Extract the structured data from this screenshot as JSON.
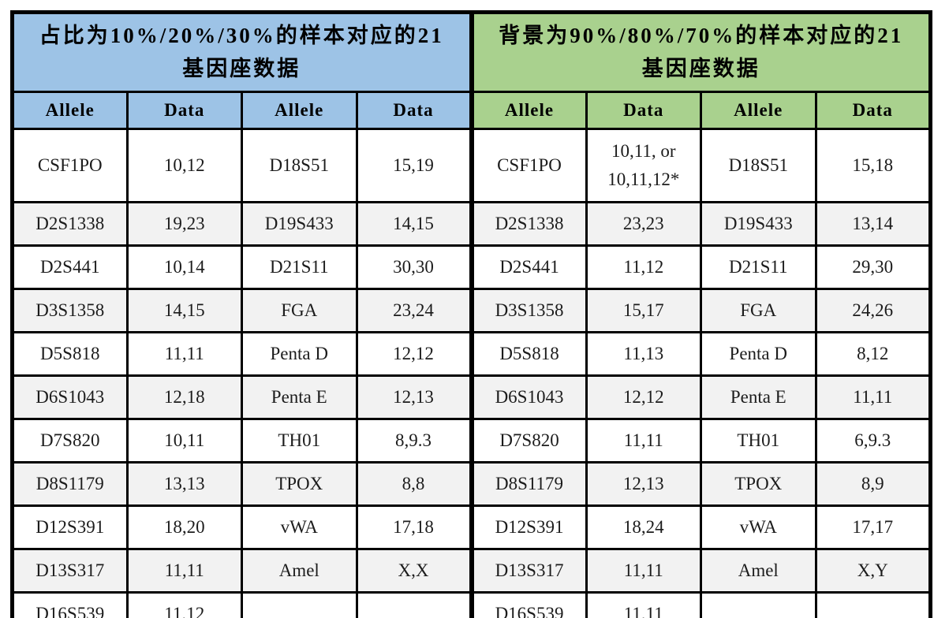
{
  "colors": {
    "blue": "#9DC3E6",
    "green": "#A9D18E",
    "rowalt": "#F2F2F2",
    "border": "#000000"
  },
  "left": {
    "title": "占比为10%/20%/30%的样本对应的21基因座数据",
    "columns": [
      "Allele",
      "Data",
      "Allele",
      "Data"
    ]
  },
  "right": {
    "title": "背景为90%/80%/70%的样本对应的21基因座数据",
    "columns": [
      "Allele",
      "Data",
      "Allele",
      "Data"
    ]
  },
  "rows": [
    [
      "CSF1PO",
      "10,12",
      "D18S51",
      "15,19",
      "CSF1PO",
      "10,11, or\n10,11,12*",
      "D18S51",
      "15,18"
    ],
    [
      "D2S1338",
      "19,23",
      "D19S433",
      "14,15",
      "D2S1338",
      "23,23",
      "D19S433",
      "13,14"
    ],
    [
      "D2S441",
      "10,14",
      "D21S11",
      "30,30",
      "D2S441",
      "11,12",
      "D21S11",
      "29,30"
    ],
    [
      "D3S1358",
      "14,15",
      "FGA",
      "23,24",
      "D3S1358",
      "15,17",
      "FGA",
      "24,26"
    ],
    [
      "D5S818",
      "11,11",
      "Penta D",
      "12,12",
      "D5S818",
      "11,13",
      "Penta D",
      "8,12"
    ],
    [
      "D6S1043",
      "12,18",
      "Penta E",
      "12,13",
      "D6S1043",
      "12,12",
      "Penta E",
      "11,11"
    ],
    [
      "D7S820",
      "10,11",
      "TH01",
      "8,9.3",
      "D7S820",
      "11,11",
      "TH01",
      "6,9.3"
    ],
    [
      "D8S1179",
      "13,13",
      "TPOX",
      "8,8",
      "D8S1179",
      "12,13",
      "TPOX",
      "8,9"
    ],
    [
      "D12S391",
      "18,20",
      "vWA",
      "17,18",
      "D12S391",
      "18,24",
      "vWA",
      "17,17"
    ],
    [
      "D13S317",
      "11,11",
      "Amel",
      "X,X",
      "D13S317",
      "11,11",
      "Amel",
      "X,Y"
    ],
    [
      "D16S539",
      "11,12",
      "",
      "",
      "D16S539",
      "11,11",
      "",
      ""
    ]
  ]
}
